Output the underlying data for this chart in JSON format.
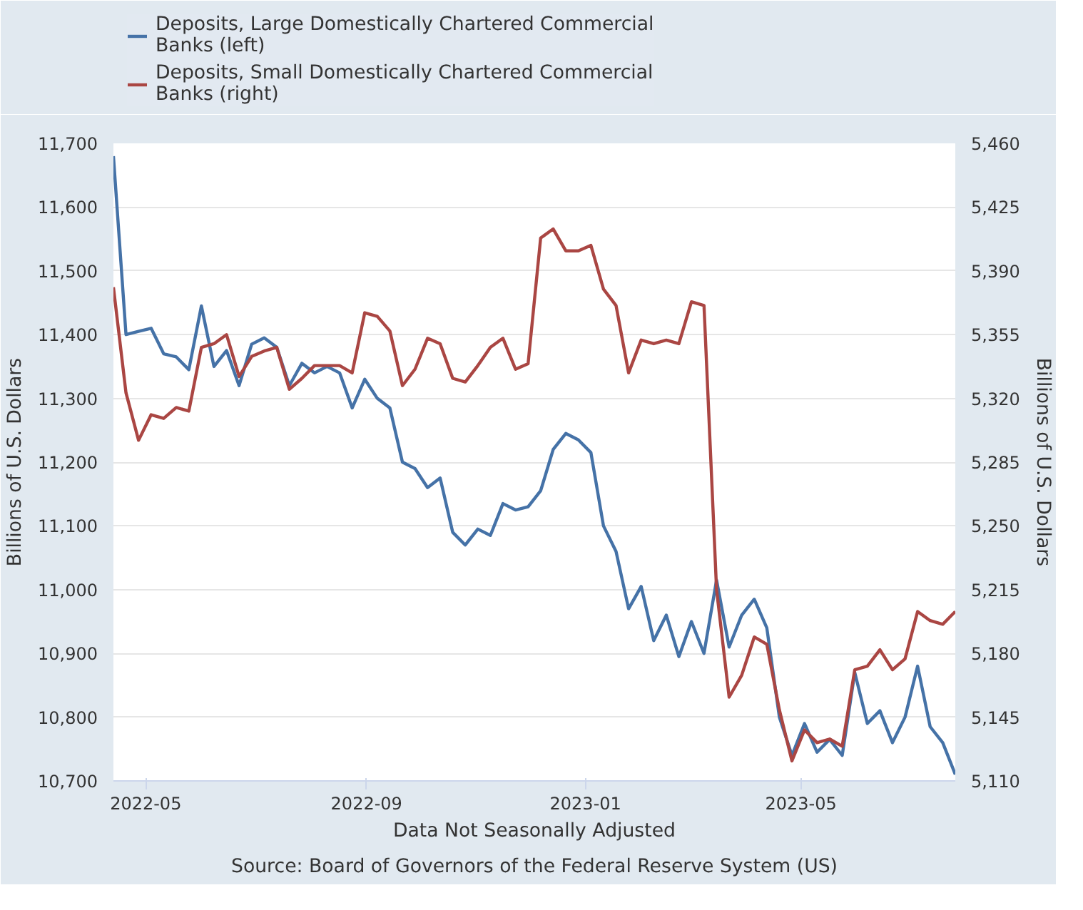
{
  "chart_data": {
    "type": "line",
    "xlabel": "Data Not Seasonally Adjusted",
    "ylabel": "Billions of U.S. Dollars",
    "y2label": "Billions of U.S. Dollars",
    "annotations": [
      "Source: Board of Governors of the Federal Reserve System (US)"
    ],
    "x": [
      "2022-04-13",
      "2022-04-20",
      "2022-04-27",
      "2022-05-04",
      "2022-05-11",
      "2022-05-18",
      "2022-05-25",
      "2022-06-01",
      "2022-06-08",
      "2022-06-15",
      "2022-06-22",
      "2022-06-29",
      "2022-07-06",
      "2022-07-13",
      "2022-07-20",
      "2022-07-27",
      "2022-08-03",
      "2022-08-10",
      "2022-08-17",
      "2022-08-24",
      "2022-08-31",
      "2022-09-07",
      "2022-09-14",
      "2022-09-21",
      "2022-09-28",
      "2022-10-05",
      "2022-10-12",
      "2022-10-19",
      "2022-10-26",
      "2022-11-02",
      "2022-11-09",
      "2022-11-16",
      "2022-11-23",
      "2022-11-30",
      "2022-12-07",
      "2022-12-14",
      "2022-12-21",
      "2022-12-28",
      "2023-01-04",
      "2023-01-11",
      "2023-01-18",
      "2023-01-25",
      "2023-02-01",
      "2023-02-08",
      "2023-02-15",
      "2023-02-22",
      "2023-03-01",
      "2023-03-08",
      "2023-03-15",
      "2023-03-22",
      "2023-03-29",
      "2023-04-05",
      "2023-04-12",
      "2023-04-19",
      "2023-04-26",
      "2023-05-03",
      "2023-05-10",
      "2023-05-17",
      "2023-05-24",
      "2023-05-31",
      "2023-06-07",
      "2023-06-14",
      "2023-06-21",
      "2023-06-28",
      "2023-07-05",
      "2023-07-12",
      "2023-07-19",
      "2023-07-26"
    ],
    "series": [
      {
        "name": "Deposits, Large Domestically Chartered Commercial Banks (left)",
        "color": "#4572a7",
        "values": [
          11680,
          11400,
          11405,
          11410,
          11370,
          11365,
          11345,
          11445,
          11350,
          11375,
          11320,
          11385,
          11395,
          11380,
          11320,
          11355,
          11340,
          11350,
          11340,
          11285,
          11330,
          11300,
          11285,
          11200,
          11190,
          11160,
          11175,
          11090,
          11070,
          11095,
          11085,
          11135,
          11125,
          11130,
          11155,
          11220,
          11245,
          11235,
          11215,
          11100,
          11060,
          10970,
          11005,
          10920,
          10960,
          10895,
          10950,
          10900,
          11015,
          10910,
          10960,
          10985,
          10940,
          10800,
          10740,
          10790,
          10745,
          10765,
          10740,
          10870,
          10790,
          10810,
          10760,
          10800,
          10880,
          10785,
          10760,
          10710
        ]
      },
      {
        "name": "Deposits, Small Domestically Chartered Commercial Banks (right)",
        "color": "#aa4643",
        "axis": "y2",
        "values": [
          5381,
          5323,
          5297,
          5311,
          5309,
          5315,
          5313,
          5348,
          5350,
          5355,
          5332,
          5343,
          5346,
          5348,
          5325,
          5331,
          5338,
          5338,
          5338,
          5334,
          5367,
          5365,
          5357,
          5327,
          5336,
          5353,
          5350,
          5331,
          5329,
          5338,
          5348,
          5353,
          5336,
          5339,
          5408,
          5413,
          5401,
          5401,
          5404,
          5380,
          5371,
          5334,
          5352,
          5350,
          5352,
          5350,
          5373,
          5371,
          5215,
          5156,
          5168,
          5189,
          5185,
          5149,
          5121,
          5138,
          5131,
          5133,
          5129,
          5171,
          5173,
          5182,
          5171,
          5177,
          5203,
          5198,
          5196,
          5203
        ]
      }
    ],
    "xlim": [
      "2022-04-13",
      "2023-07-26"
    ],
    "xticks": [
      {
        "value": "2022-05-01",
        "label": "2022-05"
      },
      {
        "value": "2022-09-01",
        "label": "2022-09"
      },
      {
        "value": "2023-01-01",
        "label": "2023-01"
      },
      {
        "value": "2023-05-01",
        "label": "2023-05"
      }
    ],
    "ylim": [
      10700,
      11700
    ],
    "yticks": [
      {
        "value": 10700,
        "label": "10,700"
      },
      {
        "value": 10800,
        "label": "10,800"
      },
      {
        "value": 10900,
        "label": "10,900"
      },
      {
        "value": 11000,
        "label": "11,000"
      },
      {
        "value": 11100,
        "label": "11,100"
      },
      {
        "value": 11200,
        "label": "11,200"
      },
      {
        "value": 11300,
        "label": "11,300"
      },
      {
        "value": 11400,
        "label": "11,400"
      },
      {
        "value": 11500,
        "label": "11,500"
      },
      {
        "value": 11600,
        "label": "11,600"
      },
      {
        "value": 11700,
        "label": "11,700"
      }
    ],
    "y2lim": [
      5110,
      5460
    ],
    "y2ticks": [
      {
        "value": 5110,
        "label": "5,110"
      },
      {
        "value": 5145,
        "label": "5,145"
      },
      {
        "value": 5180,
        "label": "5,180"
      },
      {
        "value": 5215,
        "label": "5,215"
      },
      {
        "value": 5250,
        "label": "5,250"
      },
      {
        "value": 5285,
        "label": "5,285"
      },
      {
        "value": 5320,
        "label": "5,320"
      },
      {
        "value": 5355,
        "label": "5,355"
      },
      {
        "value": 5390,
        "label": "5,390"
      },
      {
        "value": 5425,
        "label": "5,425"
      },
      {
        "value": 5460,
        "label": "5,460"
      }
    ],
    "grid": "y",
    "legend": "top left",
    "line_style": "solid"
  }
}
